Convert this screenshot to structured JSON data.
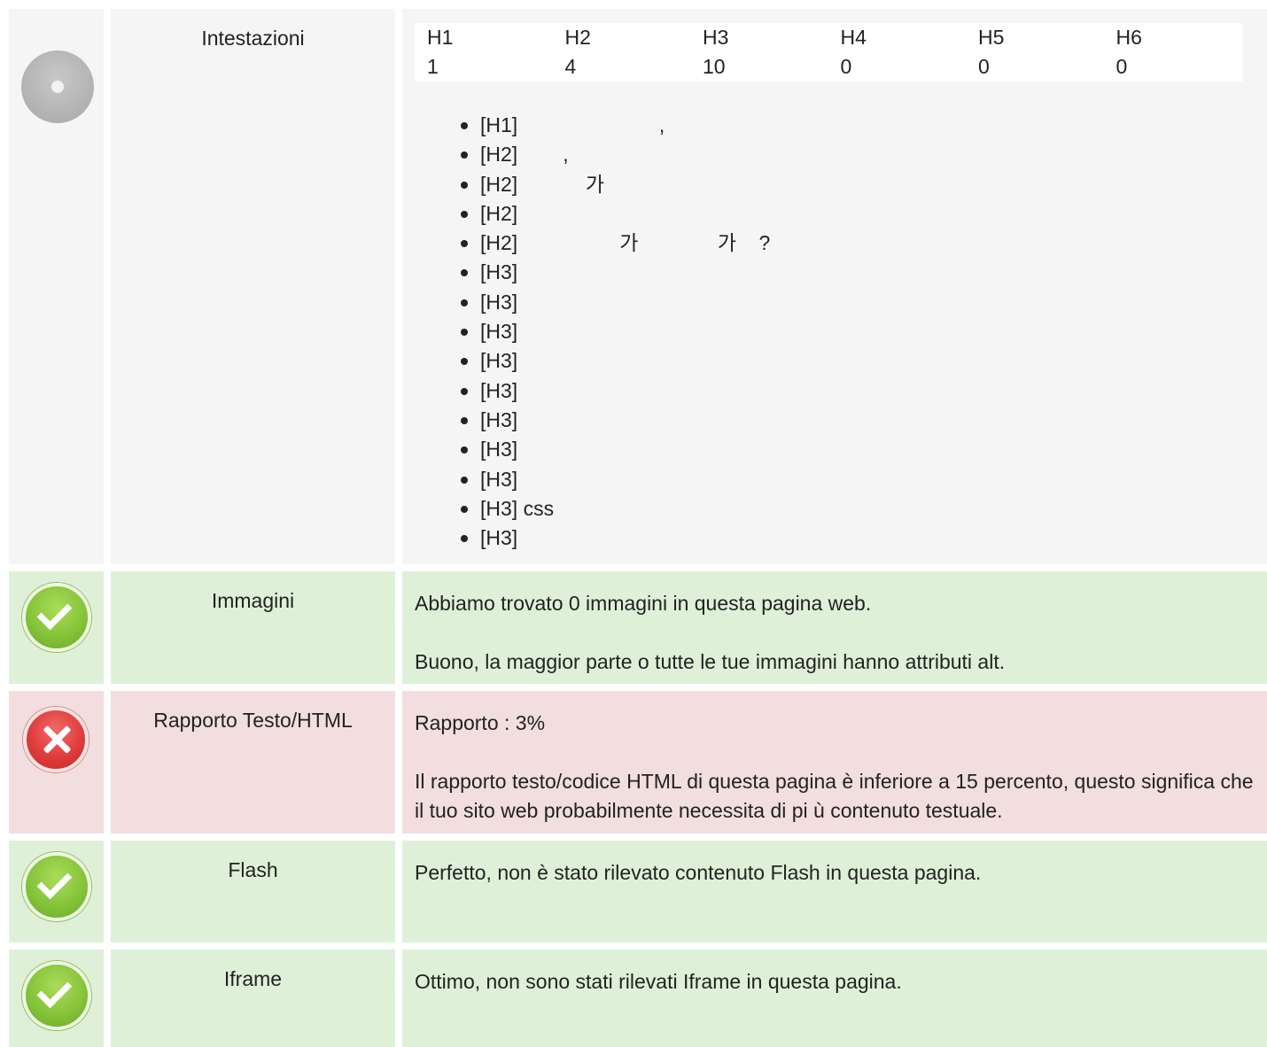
{
  "headings": {
    "label": "Intestazioni",
    "table": {
      "headers": [
        "H1",
        "H2",
        "H3",
        "H4",
        "H5",
        "H6"
      ],
      "counts": [
        "1",
        "4",
        "10",
        "0",
        "0",
        "0"
      ]
    },
    "items": [
      "[H1]                         ,",
      "[H2]        ,",
      "[H2]            가",
      "[H2]",
      "[H2]                  가              가    ?",
      "[H3]",
      "[H3]",
      "[H3]",
      "[H3]",
      "[H3]",
      "[H3]",
      "[H3]",
      "[H3]",
      "[H3] css",
      "[H3]"
    ]
  },
  "images": {
    "label": "Immagini",
    "lines": [
      "Abbiamo trovato 0 immagini in questa pagina web.",
      "Buono, la maggior parte o tutte le tue immagini hanno attributi alt."
    ]
  },
  "ratio": {
    "label": "Rapporto Testo/HTML",
    "lines": [
      "Rapporto : 3%",
      "Il rapporto testo/codice HTML di questa pagina  è  inferiore a 15 percento, questo significa che il tuo sito web probabilmente necessita di pi ù  contenuto testuale."
    ]
  },
  "flash": {
    "label": "Flash",
    "lines": [
      "Perfetto, non  è  stato rilevato contenuto Flash in questa pagina."
    ]
  },
  "iframe": {
    "label": "Iframe",
    "lines": [
      "Ottimo, non sono stati rilevati Iframe in questa pagina."
    ]
  },
  "colors": {
    "neutral_bg": "#f5f5f5",
    "good_bg": "#dff0d8",
    "bad_bg": "#f2dede"
  },
  "icons": {
    "headings": "neutral-dot-icon",
    "images": "check-icon",
    "ratio": "cross-icon",
    "flash": "check-icon",
    "iframe": "check-icon"
  }
}
